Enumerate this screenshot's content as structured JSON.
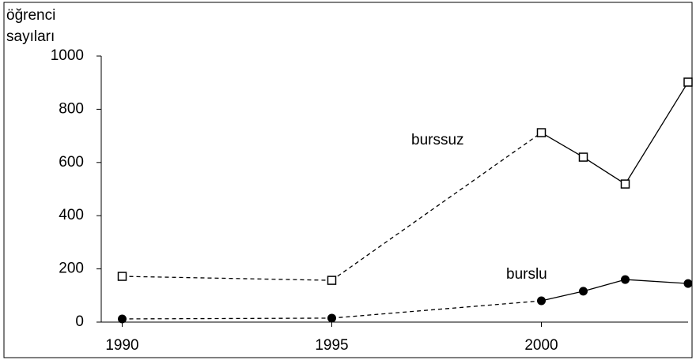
{
  "chart_data": {
    "type": "line",
    "y_label_lines": [
      "öğrenci",
      "sayıları"
    ],
    "x": [
      1990,
      1995,
      2000,
      2001,
      2002,
      2003.5
    ],
    "xlim": [
      1989.5,
      2003.5
    ],
    "xticks": [
      1990,
      1995,
      2000
    ],
    "ylim": [
      0,
      1000
    ],
    "yticks": [
      0,
      200,
      400,
      600,
      800,
      1000
    ],
    "segment_styles": [
      "dashed",
      "dashed",
      "solid",
      "solid",
      "solid"
    ],
    "series": [
      {
        "name": "burssuz",
        "color": "#000000",
        "marker": "square",
        "values": [
          172,
          157,
          712,
          620,
          519,
          902
        ]
      },
      {
        "name": "burslu",
        "color": "#000000",
        "marker": "circle",
        "values": [
          12,
          15,
          80,
          116,
          160,
          145
        ]
      }
    ]
  }
}
